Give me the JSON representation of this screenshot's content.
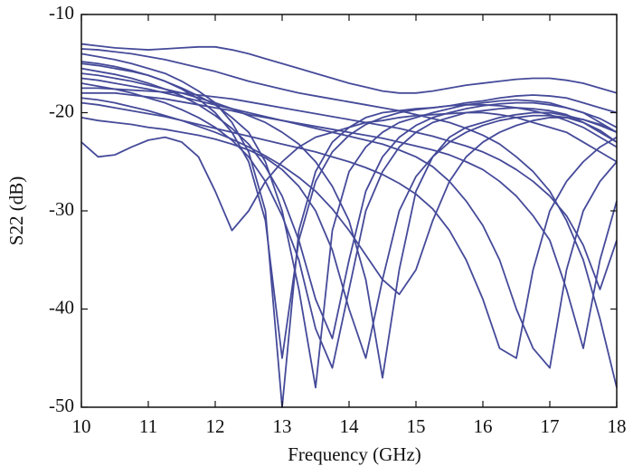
{
  "chart_data": {
    "type": "line",
    "x_label": "Frequency (GHz)",
    "y_label": "S22 (dB)",
    "x": [
      10,
      10.25,
      10.5,
      10.75,
      11,
      11.25,
      11.5,
      11.75,
      12,
      12.25,
      12.5,
      12.75,
      13,
      13.25,
      13.5,
      13.75,
      14,
      14.25,
      14.5,
      14.75,
      15,
      15.25,
      15.5,
      15.75,
      16,
      16.25,
      16.5,
      16.75,
      17,
      17.25,
      17.5,
      17.75,
      18
    ],
    "xlim": [
      10,
      18
    ],
    "xticks": [
      10,
      11,
      12,
      13,
      14,
      15,
      16,
      17,
      18
    ],
    "ylim": [
      -50,
      -10
    ],
    "yticks": [
      -50,
      -40,
      -30,
      -20,
      -10
    ],
    "grid": false,
    "series": [
      {
        "color": "#454a99",
        "values": [
          -14,
          -14.3,
          -14.6,
          -15,
          -15.5,
          -16,
          -16.8,
          -17.8,
          -19,
          -21,
          -24,
          -30,
          -50,
          -32,
          -26,
          -23,
          -21.5,
          -20.5,
          -20,
          -19.8,
          -19.6,
          -19.5,
          -19.3,
          -19,
          -18.8,
          -18.5,
          -18.3,
          -18.2,
          -18.3,
          -18.5,
          -19,
          -19.5,
          -20
        ]
      },
      {
        "color": "#454a99",
        "values": [
          -15,
          -15.2,
          -15.5,
          -15.8,
          -16.2,
          -16.8,
          -17.5,
          -18.3,
          -19.2,
          -20.5,
          -22,
          -25,
          -30,
          -38,
          -48,
          -32,
          -26,
          -23.5,
          -22,
          -21,
          -20.5,
          -20,
          -19.6,
          -19.2,
          -19,
          -18.8,
          -18.7,
          -18.8,
          -19,
          -19.5,
          -20,
          -21,
          -22
        ]
      },
      {
        "color": "#454a99",
        "values": [
          -23,
          -24.5,
          -24.3,
          -23.5,
          -22.8,
          -22.5,
          -23,
          -24.5,
          -28,
          -32,
          -30,
          -27,
          -25,
          -23.5,
          -22.5,
          -22,
          -21.5,
          -21,
          -20.8,
          -20.5,
          -20.3,
          -20.2,
          -20.1,
          -20,
          -20,
          -20.2,
          -20.5,
          -21,
          -21.5,
          -22,
          -23,
          -24,
          -25
        ]
      },
      {
        "color": "#454a99",
        "values": [
          -16,
          -16.2,
          -16.5,
          -16.8,
          -17.2,
          -17.6,
          -18,
          -18.5,
          -19,
          -19.6,
          -20.3,
          -21,
          -22,
          -23.2,
          -25,
          -27.5,
          -31,
          -37,
          -47,
          -36,
          -28,
          -24.5,
          -22.5,
          -21.5,
          -21,
          -20.5,
          -20.2,
          -20,
          -20,
          -20.3,
          -20.7,
          -21.3,
          -22
        ]
      },
      {
        "color": "#454a99",
        "values": [
          -17,
          -17.3,
          -17.6,
          -18,
          -18.5,
          -19,
          -19.7,
          -20.5,
          -21.5,
          -22.8,
          -24.5,
          -27,
          -30.5,
          -35,
          -42,
          -46,
          -38,
          -30,
          -26,
          -23.5,
          -22,
          -21,
          -20.5,
          -20,
          -19.8,
          -19.6,
          -19.5,
          -19.6,
          -19.8,
          -20.2,
          -21,
          -22,
          -23
        ]
      },
      {
        "color": "#454a99",
        "values": [
          -18,
          -18,
          -18,
          -18.2,
          -18.4,
          -18.6,
          -18.9,
          -19.2,
          -19.5,
          -19.8,
          -20.2,
          -20.5,
          -20.8,
          -21.2,
          -21.6,
          -22,
          -22.4,
          -22.8,
          -23.2,
          -23.8,
          -24.5,
          -25.5,
          -27,
          -29,
          -31.5,
          -35,
          -40,
          -44,
          -46,
          -36,
          -30,
          -27,
          -25
        ]
      },
      {
        "color": "#454a99",
        "values": [
          -19,
          -19.2,
          -19.5,
          -19.8,
          -20.1,
          -20.4,
          -20.8,
          -21.2,
          -21.6,
          -22,
          -22.4,
          -22.8,
          -23.2,
          -23.6,
          -24,
          -24.5,
          -25,
          -25.6,
          -26.3,
          -27.2,
          -28.3,
          -29.8,
          -32,
          -35,
          -39,
          -44,
          -45,
          -36,
          -30,
          -27,
          -25,
          -23.5,
          -22.5
        ]
      },
      {
        "color": "#454a99",
        "values": [
          -16.5,
          -16.7,
          -17,
          -17.3,
          -17.6,
          -18,
          -18.4,
          -18.8,
          -19.2,
          -19.6,
          -20,
          -20.4,
          -20.8,
          -21.1,
          -21.4,
          -21.7,
          -22,
          -22.3,
          -22.6,
          -23,
          -23.4,
          -23.8,
          -24.3,
          -25,
          -25.8,
          -27,
          -28.5,
          -30.5,
          -33,
          -38,
          -44,
          -35,
          -29
        ]
      },
      {
        "color": "#454a99",
        "values": [
          -13.5,
          -13.6,
          -13.8,
          -14,
          -14.3,
          -14.6,
          -15,
          -15.4,
          -15.8,
          -16.3,
          -16.8,
          -17.2,
          -17.6,
          -18,
          -18.3,
          -18.6,
          -18.9,
          -19.2,
          -19.5,
          -19.8,
          -20.2,
          -20.6,
          -21,
          -21.6,
          -22.3,
          -23.2,
          -24.5,
          -26,
          -28,
          -31,
          -35,
          -41,
          -48
        ]
      },
      {
        "color": "#454a99",
        "values": [
          -15.5,
          -15.8,
          -16.1,
          -16.5,
          -17,
          -17.6,
          -18.3,
          -19.2,
          -20.3,
          -21.6,
          -23.2,
          -25.5,
          -28.5,
          -33,
          -39,
          -43,
          -35,
          -28,
          -24.5,
          -22.5,
          -21.3,
          -20.5,
          -20,
          -19.6,
          -19.3,
          -19.1,
          -19,
          -19,
          -19.2,
          -19.5,
          -20,
          -20.6,
          -21.5
        ]
      },
      {
        "color": "#454a99",
        "values": [
          -14.8,
          -15,
          -15.3,
          -15.7,
          -16.2,
          -16.8,
          -17.6,
          -18.6,
          -20,
          -22,
          -25,
          -31,
          -45,
          -33,
          -27,
          -24,
          -22.3,
          -21.2,
          -20.5,
          -20,
          -19.7,
          -19.5,
          -19.3,
          -19.2,
          -19.2,
          -19.3,
          -19.5,
          -19.8,
          -20.2,
          -20.8,
          -21.5,
          -22.5,
          -23.5
        ]
      },
      {
        "color": "#454a99",
        "values": [
          -13,
          -13.2,
          -13.4,
          -13.5,
          -13.6,
          -13.5,
          -13.4,
          -13.3,
          -13.3,
          -13.6,
          -14,
          -14.5,
          -15,
          -15.5,
          -16,
          -16.5,
          -17,
          -17.4,
          -17.8,
          -18,
          -18,
          -17.8,
          -17.5,
          -17.2,
          -17,
          -16.8,
          -16.6,
          -16.5,
          -16.5,
          -16.7,
          -17,
          -17.5,
          -18
        ]
      },
      {
        "color": "#454a99",
        "values": [
          -20.5,
          -20.8,
          -21,
          -21.2,
          -21.5,
          -21.7,
          -22,
          -22.3,
          -22.7,
          -23.2,
          -23.8,
          -24.6,
          -25.8,
          -27.5,
          -30,
          -34,
          -40,
          -45,
          -37,
          -30,
          -26.5,
          -24.5,
          -23,
          -22,
          -21.3,
          -20.8,
          -20.5,
          -20.3,
          -20.3,
          -20.5,
          -21,
          -21.8,
          -23
        ]
      },
      {
        "color": "#454a99",
        "values": [
          -17.5,
          -17.5,
          -17.6,
          -17.7,
          -17.8,
          -17.9,
          -18,
          -18.2,
          -18.4,
          -18.6,
          -18.9,
          -19.2,
          -19.5,
          -19.8,
          -20.1,
          -20.4,
          -20.7,
          -21,
          -21.3,
          -21.6,
          -22,
          -22.4,
          -22.9,
          -23.4,
          -24,
          -24.8,
          -25.8,
          -27,
          -28.5,
          -30.5,
          -33.5,
          -38,
          -33
        ]
      },
      {
        "color": "#454a99",
        "values": [
          -18.5,
          -18.7,
          -19,
          -19.4,
          -19.8,
          -20.3,
          -20.8,
          -21.4,
          -22,
          -22.7,
          -23.5,
          -24.4,
          -25.4,
          -26.6,
          -28,
          -29.8,
          -32,
          -34.5,
          -37,
          -38.5,
          -36,
          -31,
          -27,
          -24.5,
          -23,
          -22,
          -21.3,
          -20.8,
          -20.5,
          -20.5,
          -20.7,
          -21.2,
          -22
        ]
      }
    ]
  }
}
